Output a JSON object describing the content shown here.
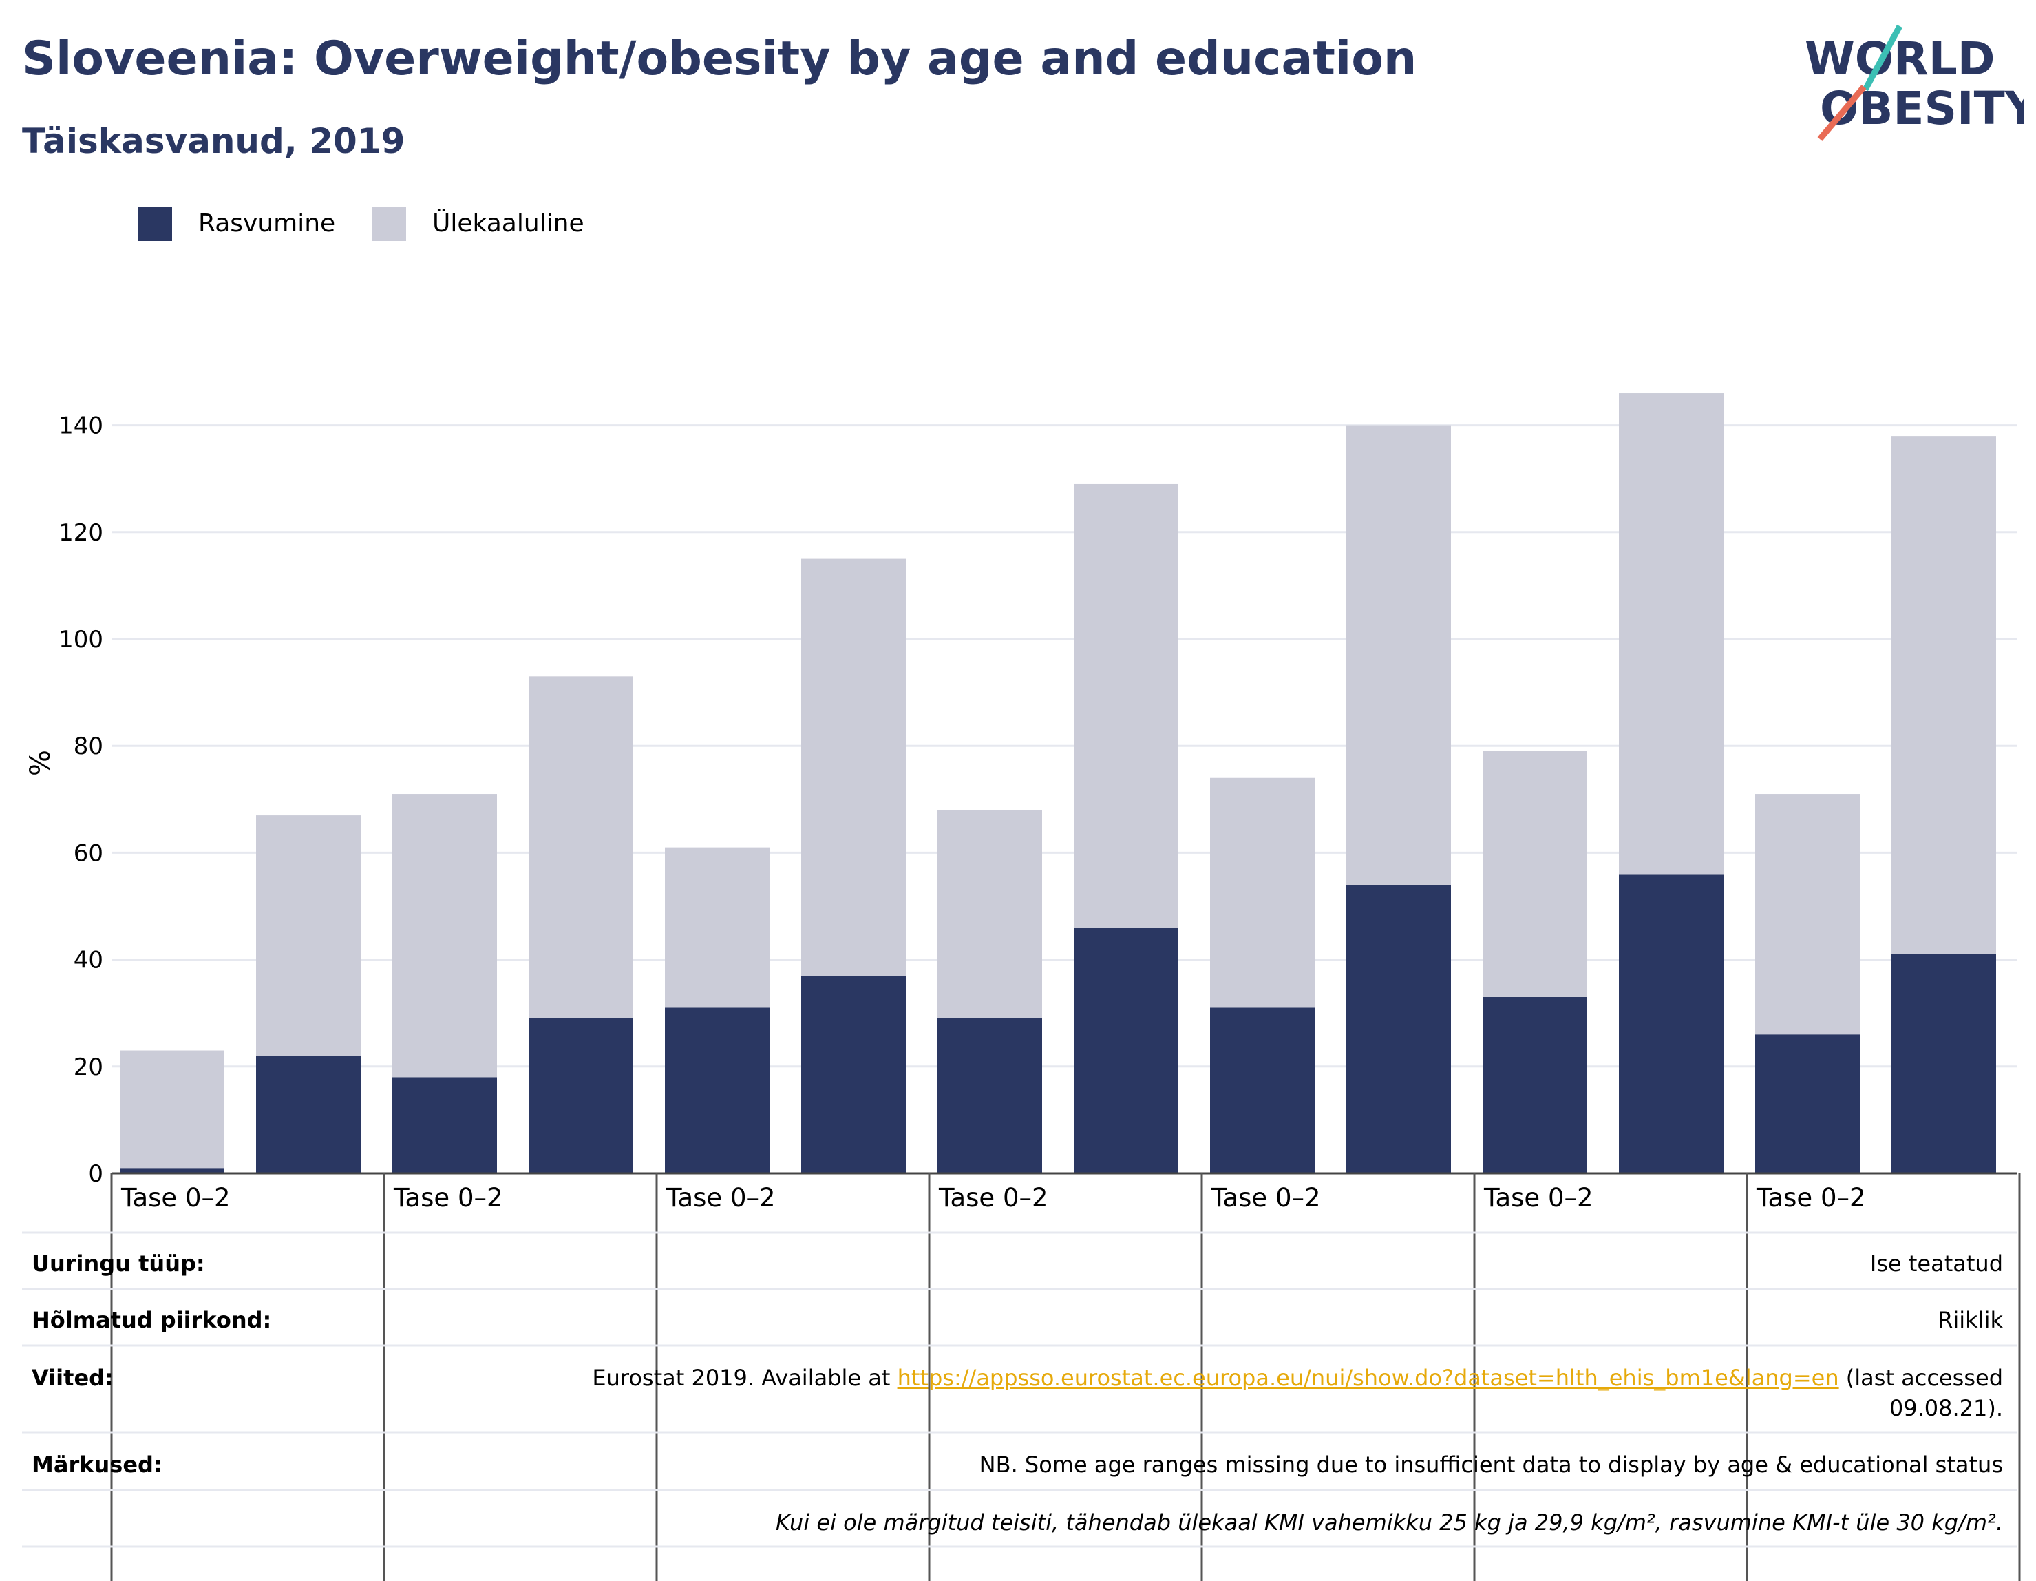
{
  "title": "Sloveenia: Overweight/obesity by age and education",
  "subtitle": "Täiskasvanud, 2019",
  "logo": {
    "line1": "WORLD",
    "line2": "OBESITY"
  },
  "colors": {
    "obesity": "#2a3762",
    "overweight": "#cbccd8",
    "title": "#2a3762",
    "link": "#e6a90a",
    "grid": "#e6e8ef"
  },
  "legend": [
    {
      "label": "Rasvumine",
      "color": "#2a3762"
    },
    {
      "label": "Ülekaaluline",
      "color": "#cbccd8"
    }
  ],
  "chart_data": {
    "type": "bar",
    "stacked": true,
    "ylabel": "%",
    "ylim": [
      0,
      150
    ],
    "yticks": [
      0,
      20,
      40,
      60,
      80,
      100,
      120,
      140
    ],
    "grid": true,
    "legend_position": "top-left",
    "group_labels": [
      "Tase 0–2",
      "Tase 0–2",
      "Tase 0–2",
      "Tase 0–2",
      "Tase 0–2",
      "Tase 0–2",
      "Tase 0–2"
    ],
    "series": [
      {
        "name": "Rasvumine",
        "values": [
          1,
          22,
          18,
          29,
          31,
          37,
          29,
          46,
          31,
          54,
          33,
          56,
          26,
          41
        ]
      },
      {
        "name": "Ülekaaluline",
        "values": [
          22,
          45,
          53,
          64,
          30,
          78,
          39,
          83,
          43,
          86,
          46,
          90,
          45,
          97
        ]
      }
    ]
  },
  "info": {
    "survey_label": "Uuringu tüüp:",
    "survey_value": "Ise teatatud",
    "coverage_label": "Hõlmatud piirkond:",
    "coverage_value": "Riiklik",
    "refs_label": "Viited:",
    "refs_prefix": "Eurostat 2019. Available at ",
    "refs_link": "https://appsso.eurostat.ec.europa.eu/nui/show.do?dataset=hlth_ehis_bm1e&lang=en",
    "refs_suffix": " (last accessed",
    "refs_line2": "09.08.21).",
    "notes_label": "Märkused:",
    "notes_value": "NB. Some age ranges missing due to insufficient data to display by age & educational status",
    "notes_italic": "Kui ei ole märgitud teisiti, tähendab ülekaal KMI vahemikku 25 kg ja 29,9 kg/m², rasvumine KMI-t üle 30 kg/m²."
  }
}
